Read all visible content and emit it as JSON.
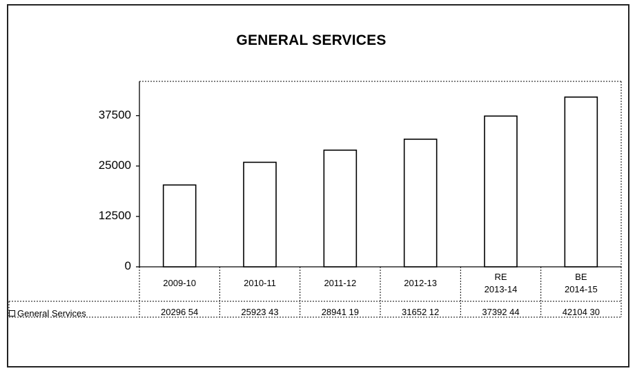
{
  "chart_data": {
    "type": "bar",
    "title": "GENERAL SERVICES",
    "categories": [
      "2009-10",
      "2010-11",
      "2011-12",
      "2012-13",
      "RE\n2013-14",
      "BE\n2014-15"
    ],
    "series": [
      {
        "name": "General Services",
        "values": [
          20296.54,
          25923.43,
          28941.19,
          31652.12,
          37392.44,
          42104.3
        ],
        "value_labels": [
          "20296 54",
          "25923 43",
          "28941 19",
          "31652 12",
          "37392 44",
          "42104 30"
        ]
      }
    ],
    "yticks": [
      "0",
      "12500",
      "25000",
      "37500"
    ],
    "ylim": [
      0,
      46000
    ],
    "grid": false,
    "legend": "data-table",
    "xlabel": "",
    "ylabel": "",
    "bar_fill": "#ffffff",
    "bar_stroke": "#000000"
  }
}
